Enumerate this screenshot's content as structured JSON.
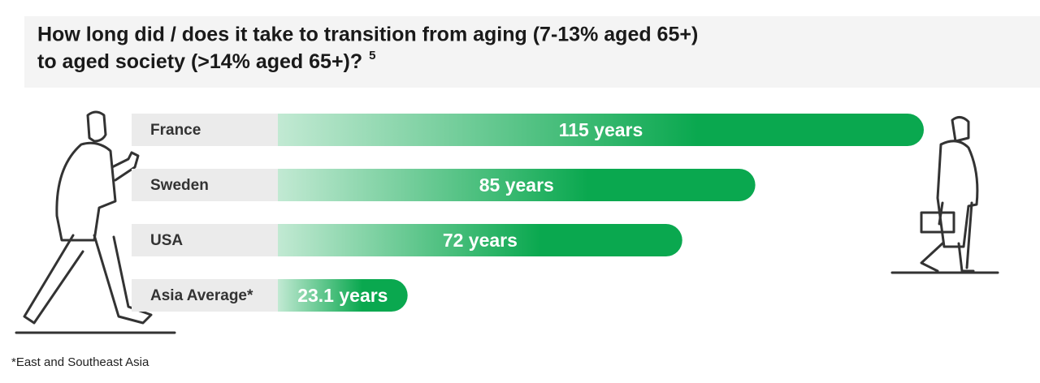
{
  "chart_data": {
    "type": "bar",
    "orientation": "horizontal",
    "title": "How long did / does it take to transition from aging (7-13% aged 65+)",
    "title_line2": "to aged society (>14% aged 65+)?",
    "title_note": "5",
    "categories": [
      "France",
      "Sweden",
      "USA",
      "Asia Average*"
    ],
    "values": [
      115,
      85,
      72,
      23.1
    ],
    "value_labels": [
      "115 years",
      "85 years",
      "72 years",
      "23.1 years"
    ],
    "color": "#0aa84f",
    "footnote": "*East and Southeast Asia"
  }
}
